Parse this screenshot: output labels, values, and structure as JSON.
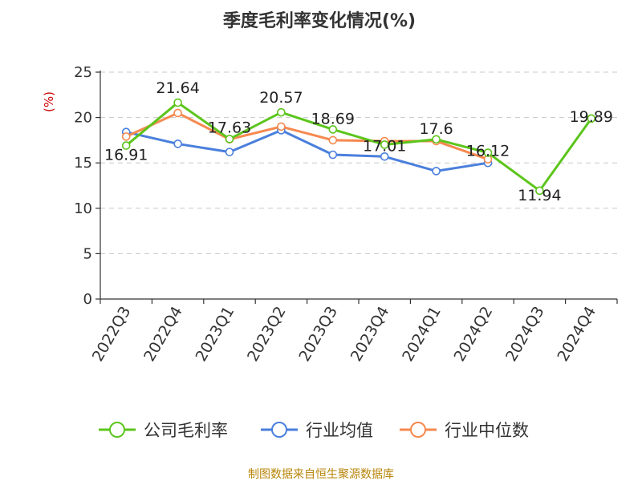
{
  "chart_data": {
    "type": "line",
    "title": "季度毛利率变化情况(%)",
    "ylabel": "(%)",
    "xlabel": "",
    "categories": [
      "2022Q3",
      "2022Q4",
      "2023Q1",
      "2023Q2",
      "2023Q3",
      "2023Q4",
      "2024Q1",
      "2024Q2",
      "2024Q3",
      "2024Q4"
    ],
    "ylim": [
      0,
      25
    ],
    "yticks": [
      0,
      5,
      10,
      15,
      20,
      25
    ],
    "grid": true,
    "legend_position": "bottom",
    "series": [
      {
        "name": "公司毛利率",
        "color": "#5cc51c",
        "values": [
          16.91,
          21.64,
          17.63,
          20.57,
          18.69,
          17.01,
          17.6,
          16.12,
          11.94,
          19.89
        ],
        "labels": [
          "16.91",
          "21.64",
          "17.63",
          "20.57",
          "18.69",
          "17.01",
          "17.6",
          "16.12",
          "11.94",
          "19.89"
        ]
      },
      {
        "name": "行业均值",
        "color": "#4a7fdc",
        "values": [
          18.4,
          17.1,
          16.2,
          18.6,
          15.9,
          15.7,
          14.1,
          15.0,
          null,
          null
        ]
      },
      {
        "name": "行业中位数",
        "color": "#f5894f",
        "values": [
          17.9,
          20.5,
          17.6,
          19.0,
          17.5,
          17.4,
          17.4,
          15.4,
          null,
          null
        ]
      }
    ]
  },
  "footer": {
    "source": "制图数据来自恒生聚源数据库"
  }
}
